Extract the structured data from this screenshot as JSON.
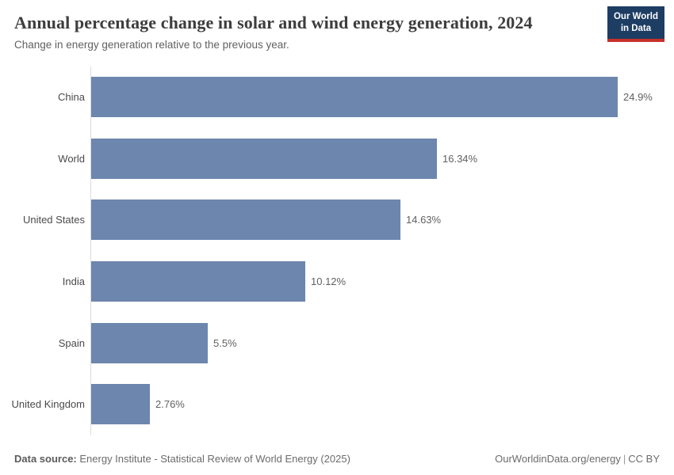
{
  "header": {
    "title": "Annual percentage change in solar and wind energy generation, 2024",
    "subtitle": "Change in energy generation relative to the previous year."
  },
  "logo": {
    "line1": "Our World",
    "line2": "in Data"
  },
  "chart_data": {
    "type": "bar",
    "orientation": "horizontal",
    "title": "Annual percentage change in solar and wind energy generation, 2024",
    "subtitle": "Change in energy generation relative to the previous year.",
    "categories": [
      "China",
      "World",
      "United States",
      "India",
      "Spain",
      "United Kingdom"
    ],
    "values": [
      24.9,
      16.34,
      14.63,
      10.12,
      5.5,
      2.76
    ],
    "value_labels": [
      "24.9%",
      "16.34%",
      "14.63%",
      "10.12%",
      "5.5%",
      "2.76%"
    ],
    "unit": "%",
    "xlim": [
      0,
      25
    ],
    "grid": false,
    "legend": "none"
  },
  "footer": {
    "datasource_label": "Data source:",
    "datasource": "Energy Institute - Statistical Review of World Energy (2025)",
    "site": "OurWorldinData.org/energy",
    "separator": "|",
    "license": "CC BY"
  },
  "colors": {
    "bar": "#6d86ae",
    "logo_bg": "#1d3d63",
    "logo_accent": "#c7302b",
    "axis_line": "#dcdcdc"
  }
}
